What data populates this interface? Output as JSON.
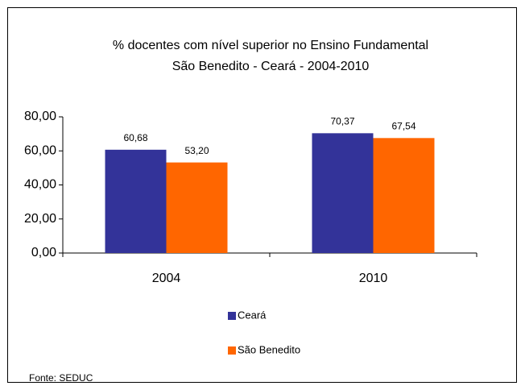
{
  "chart_data": {
    "type": "bar",
    "title": "% docentes com nível superior no Ensino Fundamental",
    "subtitle": "São Benedito -  Ceará - 2004-2010",
    "categories": [
      "2004",
      "2010"
    ],
    "series": [
      {
        "name": "Ceará",
        "color": "#333399",
        "values": [
          60.68,
          70.37
        ],
        "value_labels": [
          "60,68",
          "70,37"
        ]
      },
      {
        "name": "São Benedito",
        "color": "#ff6600",
        "values": [
          53.2,
          67.54
        ],
        "value_labels": [
          "53,20",
          "67,54"
        ]
      }
    ],
    "ylim": [
      0,
      80
    ],
    "yticks": [
      {
        "value": 0,
        "label": "0,00"
      },
      {
        "value": 20,
        "label": "20,00"
      },
      {
        "value": 40,
        "label": "40,00"
      },
      {
        "value": 60,
        "label": "60,00"
      },
      {
        "value": 80,
        "label": "80,00"
      }
    ],
    "grid": false,
    "legend": "bottom",
    "source": "Fonte: SEDUC"
  }
}
